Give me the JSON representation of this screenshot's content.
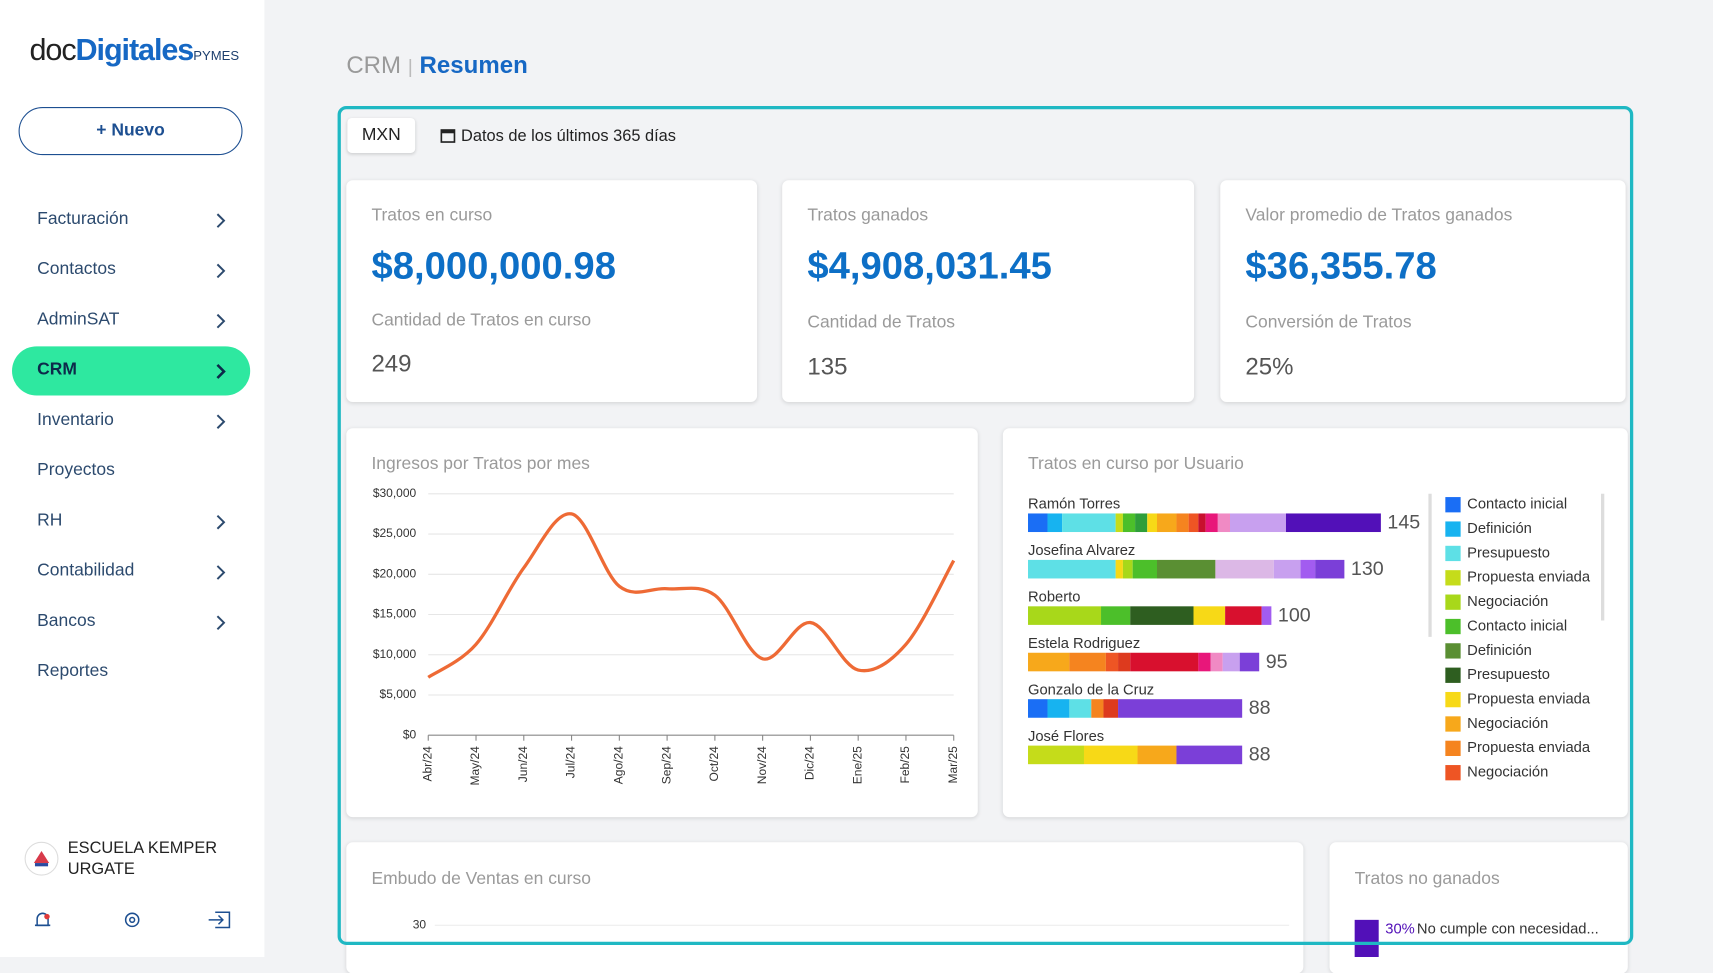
{
  "sidebar": {
    "logo": {
      "part1": "doc",
      "part2": "Digitales",
      "part3": "PYMES"
    },
    "new_button": "+ Nuevo",
    "menu": [
      {
        "label": "Facturación",
        "has_arrow": true,
        "active": false
      },
      {
        "label": "Contactos",
        "has_arrow": true,
        "active": false
      },
      {
        "label": "AdminSAT",
        "has_arrow": true,
        "active": false
      },
      {
        "label": "CRM",
        "has_arrow": true,
        "active": true
      },
      {
        "label": "Inventario",
        "has_arrow": true,
        "active": false
      },
      {
        "label": "Proyectos",
        "has_arrow": false,
        "active": false
      },
      {
        "label": "RH",
        "has_arrow": true,
        "active": false
      },
      {
        "label": "Contabilidad",
        "has_arrow": true,
        "active": false
      },
      {
        "label": "Bancos",
        "has_arrow": true,
        "active": false
      },
      {
        "label": "Reportes",
        "has_arrow": false,
        "active": false
      }
    ],
    "user": "ESCUELA KEMPER URGATE"
  },
  "header": {
    "section": "CRM",
    "separator": "|",
    "page": "Resumen"
  },
  "filters": {
    "currency": "MXN",
    "range": "Datos de los últimos 365 días"
  },
  "kpis": [
    {
      "label": "Tratos en curso",
      "value": "$8,000,000.98",
      "sublabel": "Cantidad de Tratos en curso",
      "subvalue": "249"
    },
    {
      "label": "Tratos ganados",
      "value": "$4,908,031.45",
      "sublabel": "Cantidad de Tratos",
      "subvalue": "135"
    },
    {
      "label": "Valor promedio de Tratos ganados",
      "value": "$36,355.78",
      "sublabel": "Conversión de Tratos",
      "subvalue": "25%"
    }
  ],
  "chart_data": [
    {
      "type": "line",
      "title": "Ingresos por Tratos por mes",
      "categories": [
        "Abr/24",
        "May/24",
        "Jun/24",
        "Jul/24",
        "Ago/24",
        "Sep/24",
        "Oct/24",
        "Nov/24",
        "Dic/24",
        "Ene/25",
        "Feb/25",
        "Mar/25"
      ],
      "values": [
        7200,
        11300,
        20800,
        27500,
        18500,
        18200,
        17400,
        9500,
        14000,
        8100,
        11300,
        21700
      ],
      "color": "#ee6a35",
      "ylim": [
        0,
        30000
      ],
      "yticks": [
        {
          "value": 0,
          "label": "$0"
        },
        {
          "value": 5000,
          "label": "$5,000"
        },
        {
          "value": 10000,
          "label": "$10,000"
        },
        {
          "value": 15000,
          "label": "$15,000"
        },
        {
          "value": 20000,
          "label": "$20,000"
        },
        {
          "value": 25000,
          "label": "$25,000"
        },
        {
          "value": 30000,
          "label": "$30,000"
        }
      ],
      "grid": true
    },
    {
      "type": "stacked_hbar",
      "title": "Tratos en curso por Usuario",
      "users": [
        {
          "name": "Ramón Torres",
          "total": 145,
          "segments": [
            {
              "color": "#1a6ef5",
              "value": 8
            },
            {
              "color": "#17b3f0",
              "value": 6
            },
            {
              "color": "#5ee0e6",
              "value": 22
            },
            {
              "color": "#c5dc1a",
              "value": 3
            },
            {
              "color": "#4cbf2a",
              "value": 5
            },
            {
              "color": "#2f9e3a",
              "value": 5
            },
            {
              "color": "#f7d917",
              "value": 4
            },
            {
              "color": "#f7a81b",
              "value": 8
            },
            {
              "color": "#f5841f",
              "value": 5
            },
            {
              "color": "#ee5524",
              "value": 4
            },
            {
              "color": "#c8102e",
              "value": 3
            },
            {
              "color": "#e8177a",
              "value": 5
            },
            {
              "color": "#f08ac4",
              "value": 5
            },
            {
              "color": "#c8a0ef",
              "value": 23
            },
            {
              "color": "#5210b8",
              "value": 39
            }
          ]
        },
        {
          "name": "Josefina Alvarez",
          "total": 130,
          "segments": [
            {
              "color": "#5ee0e6",
              "value": 36
            },
            {
              "color": "#f7d917",
              "value": 3
            },
            {
              "color": "#a8d81a",
              "value": 4
            },
            {
              "color": "#4cbf2a",
              "value": 10
            },
            {
              "color": "#5a8f33",
              "value": 24
            },
            {
              "color": "#dcb8e6",
              "value": 24
            },
            {
              "color": "#c8a0ef",
              "value": 11
            },
            {
              "color": "#a25cf0",
              "value": 6
            },
            {
              "color": "#7b3fd8",
              "value": 12
            }
          ]
        },
        {
          "name": "Roberto",
          "total": 100,
          "segments": [
            {
              "color": "#a8d81a",
              "value": 30
            },
            {
              "color": "#4cbf2a",
              "value": 12
            },
            {
              "color": "#2e5e20",
              "value": 26
            },
            {
              "color": "#f7d917",
              "value": 13
            },
            {
              "color": "#d8102e",
              "value": 15
            },
            {
              "color": "#a25cf0",
              "value": 4
            }
          ]
        },
        {
          "name": "Estela Rodriguez",
          "total": 95,
          "segments": [
            {
              "color": "#f7a81b",
              "value": 17
            },
            {
              "color": "#f5841f",
              "value": 15
            },
            {
              "color": "#ee5524",
              "value": 5
            },
            {
              "color": "#dd3a1e",
              "value": 5
            },
            {
              "color": "#d8102e",
              "value": 28
            },
            {
              "color": "#e8177a",
              "value": 5
            },
            {
              "color": "#f08ac4",
              "value": 5
            },
            {
              "color": "#c8a0ef",
              "value": 7
            },
            {
              "color": "#7b3fd8",
              "value": 8
            }
          ]
        },
        {
          "name": "Gonzalo de la Cruz",
          "total": 88,
          "segments": [
            {
              "color": "#1a6ef5",
              "value": 8
            },
            {
              "color": "#17b3f0",
              "value": 9
            },
            {
              "color": "#5ee0e6",
              "value": 9
            },
            {
              "color": "#f5841f",
              "value": 5
            },
            {
              "color": "#dd3a1e",
              "value": 6
            },
            {
              "color": "#7b3fd8",
              "value": 51
            }
          ]
        },
        {
          "name": "José Flores",
          "total": 88,
          "segments": [
            {
              "color": "#c5dc1a",
              "value": 23
            },
            {
              "color": "#f7d917",
              "value": 22
            },
            {
              "color": "#f7a81b",
              "value": 16
            },
            {
              "color": "#7b3fd8",
              "value": 27
            }
          ]
        }
      ],
      "legend": [
        {
          "name": "Contacto inicial",
          "color": "#1a6ef5"
        },
        {
          "name": "Definición",
          "color": "#17b3f0"
        },
        {
          "name": "Presupuesto",
          "color": "#5ee0e6"
        },
        {
          "name": "Propuesta enviada",
          "color": "#c5dc1a"
        },
        {
          "name": "Negociación",
          "color": "#a8d81a"
        },
        {
          "name": "Contacto inicial",
          "color": "#4cbf2a"
        },
        {
          "name": "Definición",
          "color": "#5a8f33"
        },
        {
          "name": "Presupuesto",
          "color": "#2e5e20"
        },
        {
          "name": "Propuesta enviada",
          "color": "#f7d917"
        },
        {
          "name": "Negociación",
          "color": "#f7a81b"
        },
        {
          "name": "Propuesta enviada",
          "color": "#f5841f"
        },
        {
          "name": "Negociación",
          "color": "#ee5524"
        }
      ]
    },
    {
      "type": "bar",
      "title": "Embudo de Ventas en curso",
      "yticks": [
        30
      ]
    },
    {
      "type": "list",
      "title": "Tratos no ganados",
      "items": [
        {
          "value": 30,
          "value_label": "30%",
          "label": "No cumple con necesidad...",
          "color": "#5210b8"
        }
      ]
    }
  ]
}
